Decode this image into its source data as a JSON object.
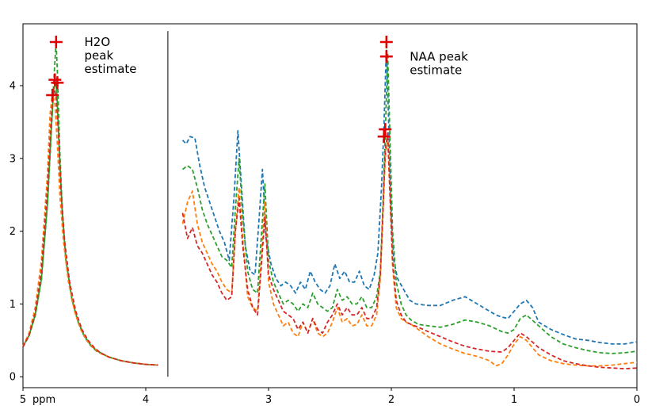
{
  "chart_data": {
    "type": "line",
    "title": "",
    "xlabel": "ppm",
    "ylabel": "",
    "xlim": [
      5,
      0
    ],
    "ylim": [
      -0.15,
      4.85
    ],
    "x_ticks": [
      5,
      4,
      3,
      2,
      1,
      0
    ],
    "x_tick_labels": [
      "5",
      "4",
      "3",
      "2",
      "1",
      "0"
    ],
    "y_ticks": [
      0,
      1,
      2,
      3,
      4
    ],
    "y_tick_labels": [
      "0",
      "1",
      "2",
      "3",
      "4"
    ],
    "divider_ppm": 3.82,
    "colors": {
      "blue": "#1f77b4",
      "orange": "#ff7f0e",
      "green": "#2ca02c",
      "red": "#d62728",
      "marker": "#e00000"
    },
    "water_series": [
      {
        "name": "solid green",
        "color": "#2ca02c",
        "style": "solid",
        "x": [
          5.0,
          4.95,
          4.9,
          4.85,
          4.8,
          4.77,
          4.75,
          4.73,
          4.72,
          4.7,
          4.68,
          4.65,
          4.6,
          4.55,
          4.5,
          4.45,
          4.4,
          4.3,
          4.2,
          4.1,
          4.0,
          3.9
        ],
        "y": [
          0.42,
          0.57,
          0.85,
          1.35,
          2.4,
          3.4,
          3.95,
          4.05,
          3.75,
          2.95,
          2.25,
          1.6,
          1.05,
          0.75,
          0.56,
          0.44,
          0.36,
          0.27,
          0.22,
          0.19,
          0.17,
          0.16
        ]
      },
      {
        "name": "dashed green",
        "color": "#2ca02c",
        "style": "dashed",
        "x": [
          5.0,
          4.95,
          4.9,
          4.85,
          4.8,
          4.77,
          4.75,
          4.73,
          4.72,
          4.7,
          4.68,
          4.65,
          4.6,
          4.55,
          4.5,
          4.45,
          4.4,
          4.3,
          4.2,
          4.1,
          4.0,
          3.9
        ],
        "y": [
          0.41,
          0.56,
          0.84,
          1.33,
          2.38,
          3.35,
          4.05,
          4.6,
          4.2,
          3.1,
          2.3,
          1.62,
          1.05,
          0.74,
          0.55,
          0.43,
          0.35,
          0.27,
          0.22,
          0.19,
          0.17,
          0.16
        ]
      },
      {
        "name": "dashed orange",
        "color": "#ff7f0e",
        "style": "dashed",
        "x": [
          5.0,
          4.95,
          4.9,
          4.85,
          4.8,
          4.78,
          4.76,
          4.74,
          4.72,
          4.7,
          4.67,
          4.63,
          4.58,
          4.53,
          4.48,
          4.43,
          4.38,
          4.3,
          4.2,
          4.1,
          4.0,
          3.9
        ],
        "y": [
          0.42,
          0.6,
          0.95,
          1.6,
          2.8,
          3.6,
          3.9,
          3.75,
          3.2,
          2.5,
          1.85,
          1.3,
          0.9,
          0.65,
          0.5,
          0.4,
          0.33,
          0.27,
          0.22,
          0.19,
          0.17,
          0.16
        ]
      },
      {
        "name": "dashed red",
        "color": "#d62728",
        "style": "dashed",
        "x": [
          5.0,
          4.95,
          4.9,
          4.85,
          4.8,
          4.77,
          4.75,
          4.73,
          4.71,
          4.69,
          4.66,
          4.62,
          4.57,
          4.52,
          4.47,
          4.42,
          4.37,
          4.3,
          4.2,
          4.1,
          4.0,
          3.9
        ],
        "y": [
          0.41,
          0.57,
          0.88,
          1.45,
          2.6,
          3.55,
          3.98,
          3.85,
          3.3,
          2.55,
          1.85,
          1.3,
          0.9,
          0.65,
          0.5,
          0.4,
          0.33,
          0.27,
          0.22,
          0.19,
          0.17,
          0.16
        ]
      }
    ],
    "metab_series": [
      {
        "name": "blue",
        "color": "#1f77b4",
        "x": [
          3.7,
          3.67,
          3.64,
          3.6,
          3.56,
          3.52,
          3.48,
          3.44,
          3.4,
          3.36,
          3.32,
          3.28,
          3.25,
          3.22,
          3.19,
          3.15,
          3.11,
          3.08,
          3.05,
          3.02,
          2.98,
          2.94,
          2.9,
          2.86,
          2.82,
          2.78,
          2.74,
          2.7,
          2.66,
          2.62,
          2.58,
          2.54,
          2.5,
          2.46,
          2.42,
          2.38,
          2.34,
          2.3,
          2.26,
          2.22,
          2.18,
          2.14,
          2.11,
          2.08,
          2.06,
          2.04,
          2.02,
          2.0,
          1.98,
          1.95,
          1.9,
          1.85,
          1.8,
          1.7,
          1.6,
          1.5,
          1.4,
          1.35,
          1.3,
          1.25,
          1.2,
          1.15,
          1.1,
          1.05,
          1.0,
          0.95,
          0.9,
          0.85,
          0.8,
          0.7,
          0.6,
          0.5,
          0.4,
          0.3,
          0.2,
          0.1,
          0.0
        ],
        "y": [
          3.25,
          3.2,
          3.3,
          3.28,
          2.9,
          2.6,
          2.4,
          2.2,
          2.0,
          1.85,
          1.6,
          2.5,
          3.38,
          2.6,
          1.8,
          1.45,
          1.4,
          2.1,
          2.85,
          1.9,
          1.55,
          1.35,
          1.25,
          1.3,
          1.25,
          1.15,
          1.3,
          1.2,
          1.45,
          1.3,
          1.2,
          1.15,
          1.25,
          1.55,
          1.35,
          1.45,
          1.3,
          1.3,
          1.45,
          1.25,
          1.2,
          1.4,
          1.7,
          2.6,
          3.45,
          4.55,
          3.4,
          2.2,
          1.6,
          1.35,
          1.2,
          1.05,
          1.0,
          0.98,
          0.98,
          1.05,
          1.1,
          1.05,
          1.0,
          0.95,
          0.9,
          0.85,
          0.82,
          0.8,
          0.9,
          1.0,
          1.05,
          0.95,
          0.75,
          0.65,
          0.58,
          0.52,
          0.5,
          0.47,
          0.45,
          0.45,
          0.48
        ]
      },
      {
        "name": "green",
        "color": "#2ca02c",
        "x": [
          3.7,
          3.66,
          3.62,
          3.58,
          3.54,
          3.5,
          3.46,
          3.42,
          3.38,
          3.34,
          3.3,
          3.27,
          3.24,
          3.21,
          3.17,
          3.13,
          3.09,
          3.06,
          3.03,
          3.0,
          2.96,
          2.92,
          2.88,
          2.84,
          2.8,
          2.76,
          2.72,
          2.68,
          2.64,
          2.6,
          2.56,
          2.52,
          2.48,
          2.44,
          2.4,
          2.36,
          2.32,
          2.28,
          2.24,
          2.2,
          2.16,
          2.12,
          2.09,
          2.07,
          2.05,
          2.03,
          2.01,
          1.99,
          1.96,
          1.92,
          1.88,
          1.84,
          1.78,
          1.7,
          1.6,
          1.5,
          1.4,
          1.3,
          1.2,
          1.1,
          1.05,
          1.0,
          0.95,
          0.9,
          0.8,
          0.7,
          0.6,
          0.5,
          0.4,
          0.3,
          0.2,
          0.1,
          0.0
        ],
        "y": [
          2.85,
          2.9,
          2.85,
          2.6,
          2.3,
          2.1,
          1.95,
          1.8,
          1.65,
          1.6,
          1.5,
          2.3,
          3.0,
          2.2,
          1.45,
          1.2,
          1.15,
          1.9,
          2.65,
          1.6,
          1.3,
          1.15,
          1.0,
          1.05,
          1.0,
          0.9,
          1.0,
          0.95,
          1.15,
          1.0,
          0.95,
          0.9,
          0.95,
          1.2,
          1.05,
          1.1,
          1.0,
          1.0,
          1.1,
          0.95,
          0.95,
          1.1,
          1.45,
          2.3,
          3.3,
          4.45,
          3.2,
          2.0,
          1.3,
          1.0,
          0.85,
          0.78,
          0.72,
          0.7,
          0.68,
          0.72,
          0.78,
          0.75,
          0.7,
          0.62,
          0.6,
          0.65,
          0.8,
          0.85,
          0.7,
          0.55,
          0.45,
          0.4,
          0.36,
          0.33,
          0.32,
          0.33,
          0.35
        ]
      },
      {
        "name": "orange",
        "color": "#ff7f0e",
        "x": [
          3.7,
          3.66,
          3.62,
          3.58,
          3.54,
          3.5,
          3.46,
          3.42,
          3.38,
          3.34,
          3.3,
          3.27,
          3.24,
          3.21,
          3.17,
          3.13,
          3.09,
          3.06,
          3.03,
          3.0,
          2.96,
          2.92,
          2.88,
          2.84,
          2.8,
          2.76,
          2.72,
          2.68,
          2.64,
          2.6,
          2.56,
          2.52,
          2.48,
          2.44,
          2.4,
          2.36,
          2.32,
          2.28,
          2.24,
          2.2,
          2.16,
          2.12,
          2.09,
          2.07,
          2.05,
          2.03,
          2.01,
          1.99,
          1.96,
          1.92,
          1.88,
          1.84,
          1.78,
          1.7,
          1.6,
          1.5,
          1.4,
          1.3,
          1.2,
          1.15,
          1.1,
          1.05,
          1.0,
          0.95,
          0.9,
          0.8,
          0.7,
          0.6,
          0.5,
          0.4,
          0.3,
          0.2,
          0.1,
          0.0
        ],
        "y": [
          2.1,
          2.4,
          2.55,
          2.1,
          1.85,
          1.7,
          1.55,
          1.45,
          1.3,
          1.2,
          1.15,
          2.0,
          2.6,
          1.9,
          1.1,
          0.95,
          0.9,
          1.6,
          2.4,
          1.3,
          1.0,
          0.85,
          0.7,
          0.75,
          0.6,
          0.55,
          0.75,
          0.6,
          0.8,
          0.6,
          0.55,
          0.6,
          0.75,
          0.95,
          0.75,
          0.8,
          0.7,
          0.72,
          0.85,
          0.7,
          0.7,
          0.85,
          1.35,
          2.2,
          3.0,
          3.3,
          2.4,
          1.5,
          0.95,
          0.8,
          0.75,
          0.72,
          0.65,
          0.55,
          0.45,
          0.38,
          0.32,
          0.28,
          0.22,
          0.15,
          0.18,
          0.3,
          0.45,
          0.55,
          0.5,
          0.3,
          0.22,
          0.18,
          0.16,
          0.15,
          0.15,
          0.16,
          0.18,
          0.2
        ]
      },
      {
        "name": "red",
        "color": "#d62728",
        "x": [
          3.7,
          3.66,
          3.62,
          3.58,
          3.54,
          3.5,
          3.46,
          3.42,
          3.38,
          3.34,
          3.3,
          3.27,
          3.24,
          3.21,
          3.17,
          3.13,
          3.09,
          3.06,
          3.03,
          3.0,
          2.96,
          2.92,
          2.88,
          2.84,
          2.8,
          2.76,
          2.72,
          2.68,
          2.64,
          2.6,
          2.56,
          2.52,
          2.48,
          2.44,
          2.4,
          2.36,
          2.32,
          2.28,
          2.24,
          2.2,
          2.16,
          2.12,
          2.09,
          2.07,
          2.05,
          2.03,
          2.01,
          1.99,
          1.96,
          1.92,
          1.88,
          1.84,
          1.78,
          1.7,
          1.6,
          1.5,
          1.4,
          1.3,
          1.2,
          1.1,
          1.05,
          1.0,
          0.95,
          0.9,
          0.8,
          0.7,
          0.6,
          0.5,
          0.4,
          0.3,
          0.2,
          0.1,
          0.0
        ],
        "y": [
          2.25,
          1.9,
          2.05,
          1.8,
          1.7,
          1.55,
          1.4,
          1.3,
          1.15,
          1.05,
          1.1,
          2.0,
          2.45,
          1.8,
          1.2,
          0.95,
          0.85,
          1.5,
          2.2,
          1.4,
          1.2,
          1.05,
          0.9,
          0.85,
          0.8,
          0.65,
          0.75,
          0.6,
          0.8,
          0.65,
          0.6,
          0.75,
          0.85,
          1.0,
          0.85,
          0.95,
          0.85,
          0.85,
          0.95,
          0.8,
          0.8,
          0.95,
          1.4,
          2.2,
          3.1,
          3.35,
          2.5,
          1.6,
          1.05,
          0.85,
          0.75,
          0.72,
          0.68,
          0.62,
          0.55,
          0.48,
          0.42,
          0.38,
          0.35,
          0.34,
          0.4,
          0.5,
          0.6,
          0.55,
          0.4,
          0.3,
          0.22,
          0.18,
          0.15,
          0.13,
          0.12,
          0.11,
          0.12
        ]
      }
    ],
    "markers": [
      {
        "x": 4.73,
        "y": 4.6
      },
      {
        "x": 4.74,
        "y": 4.08
      },
      {
        "x": 4.72,
        "y": 4.04
      },
      {
        "x": 4.76,
        "y": 3.87
      },
      {
        "x": 2.04,
        "y": 4.6
      },
      {
        "x": 2.04,
        "y": 4.4
      },
      {
        "x": 2.05,
        "y": 3.4
      },
      {
        "x": 2.06,
        "y": 3.3
      }
    ],
    "annotations": [
      {
        "lines": [
          "H2O",
          "peak",
          "estimate"
        ],
        "x": 4.5,
        "y": 4.6
      },
      {
        "lines": [
          "NAA peak",
          "estimate"
        ],
        "x": 1.85,
        "y": 4.4
      }
    ]
  }
}
